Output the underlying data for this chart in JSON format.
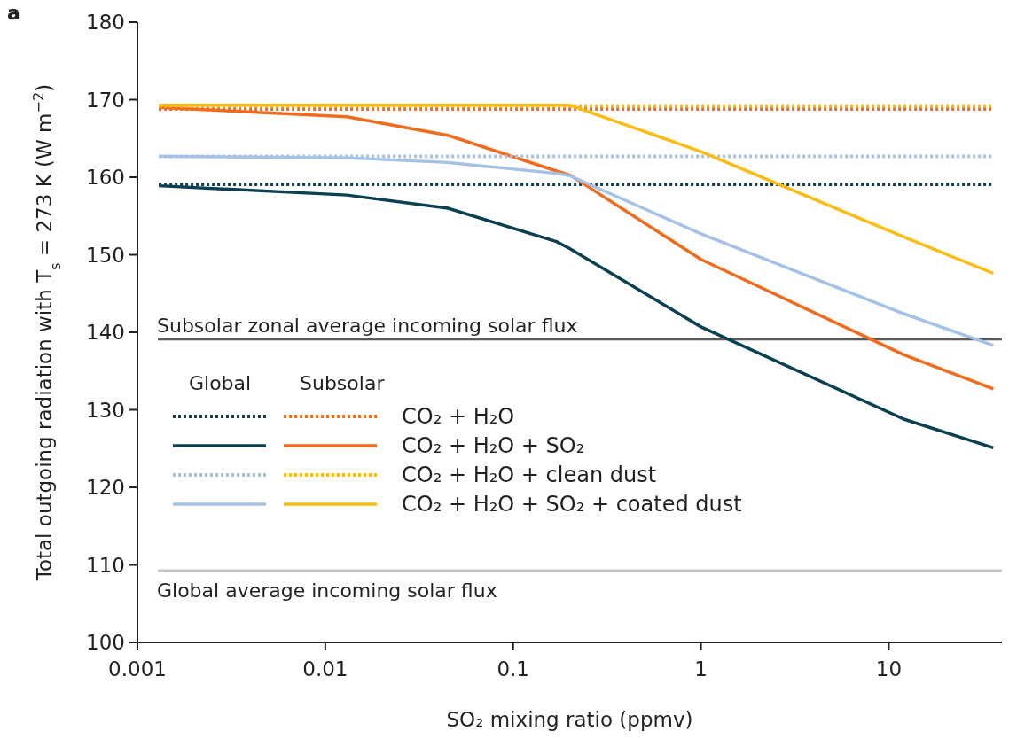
{
  "chart_data": {
    "type": "line",
    "title": "a",
    "xlabel": "SO₂ mixing ratio (ppmv)",
    "ylabel": "Total outgoing radiation with T$_{s}$ = 273 K (W m$^{−2}$)",
    "log": "x",
    "xlim": [
      0.001,
      40
    ],
    "xticks": [
      0.001,
      0.01,
      0.1,
      1,
      10
    ],
    "ylim": [
      100,
      180
    ],
    "yticks": [
      100,
      110,
      120,
      130,
      140,
      150,
      160,
      170,
      180
    ],
    "grid": false,
    "legend": "center left",
    "annotations": [
      "Global",
      "Subsolar"
    ],
    "x": [
      0.0013,
      0.013,
      0.045,
      0.17,
      0.2,
      1,
      12,
      36
    ],
    "series": [
      {
        "color": "#0b4050",
        "line_style": "dotted",
        "values": [
          159.1,
          159.1,
          159.1,
          159.1,
          159.1,
          159.1,
          159.1,
          159.1
        ]
      },
      {
        "name": "CO₂ + H₂O",
        "color": "#f26b1d",
        "line_style": "dotted",
        "values": [
          168.8,
          168.8,
          168.8,
          168.8,
          168.8,
          168.8,
          168.8,
          168.8
        ]
      },
      {
        "color": "#0b4050",
        "line_style": "solid",
        "values": [
          158.9,
          157.7,
          156.0,
          151.7,
          150.8,
          140.7,
          128.8,
          125.1
        ]
      },
      {
        "name": "CO₂ + H₂O + SO₂",
        "color": "#f26b1d",
        "line_style": "solid",
        "values": [
          169.0,
          167.8,
          165.4,
          160.8,
          160.3,
          149.4,
          137.1,
          132.7
        ]
      },
      {
        "color": "#a4c1e6",
        "line_style": "dotted",
        "values": [
          162.7,
          162.7,
          162.7,
          162.7,
          162.7,
          162.7,
          162.7,
          162.7
        ]
      },
      {
        "name": "CO₂ + H₂O + clean dust",
        "color": "#fbbb10",
        "line_style": "dotted",
        "values": [
          169.2,
          169.2,
          169.2,
          169.2,
          169.2,
          169.2,
          169.2,
          169.2
        ]
      },
      {
        "color": "#a4c1e6",
        "line_style": "solid",
        "values": [
          162.7,
          162.5,
          161.9,
          160.5,
          160.2,
          152.7,
          142.4,
          138.3
        ]
      },
      {
        "name": "CO₂ + H₂O + SO₂ + coated dust",
        "color": "#fbbb10",
        "line_style": "solid",
        "values": [
          169.3,
          169.3,
          169.3,
          169.3,
          169.3,
          163.3,
          152.3,
          147.6
        ]
      }
    ],
    "ref_lines": [
      {
        "axis": "y",
        "value": 139.1,
        "label": "Subsolar zonal average incoming solar flux",
        "color": "#5a5a5a"
      },
      {
        "axis": "y",
        "value": 109.3,
        "label": "Global average incoming solar flux",
        "color": "#c4c4c8"
      }
    ]
  }
}
